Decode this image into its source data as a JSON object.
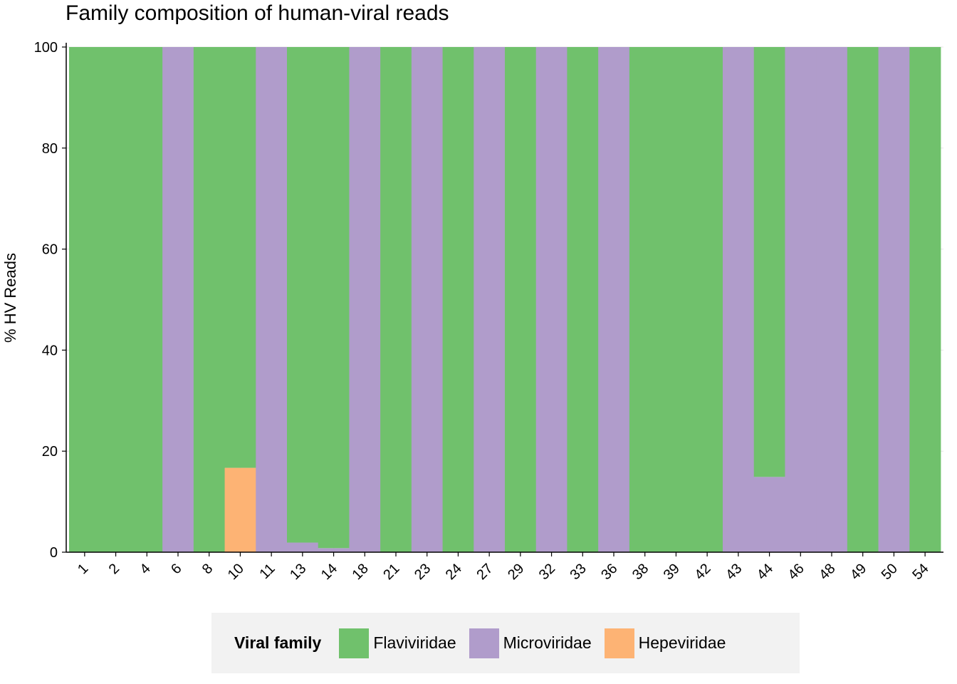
{
  "chart_data": {
    "type": "bar",
    "stacked": true,
    "title": "Family composition of human-viral reads",
    "xlabel": "",
    "ylabel": "% HV Reads",
    "ylim": [
      0,
      100
    ],
    "yticks": [
      0,
      20,
      40,
      60,
      80,
      100
    ],
    "grid": true,
    "legend_position": "bottom",
    "legend_title": "Viral family",
    "categories": [
      "1",
      "2",
      "4",
      "6",
      "8",
      "10",
      "11",
      "13",
      "14",
      "18",
      "21",
      "23",
      "24",
      "27",
      "29",
      "32",
      "33",
      "36",
      "38",
      "39",
      "42",
      "43",
      "44",
      "46",
      "48",
      "49",
      "50",
      "54"
    ],
    "series": [
      {
        "name": "Hepeviridae",
        "color": "#fdb374",
        "values": [
          0,
          0,
          0,
          0,
          0,
          16.7,
          0,
          0,
          0,
          0,
          0,
          0,
          0,
          0,
          0,
          0,
          0,
          0,
          0,
          0,
          0,
          0,
          0,
          0,
          0,
          0,
          0,
          0
        ]
      },
      {
        "name": "Microviridae",
        "color": "#b09ccb",
        "values": [
          0,
          0,
          0,
          100,
          0,
          0,
          100,
          1.9,
          0.8,
          100,
          0,
          100,
          0,
          100,
          0,
          100,
          0,
          100,
          0,
          0,
          0,
          100,
          14.9,
          100,
          100,
          0,
          100,
          0
        ]
      },
      {
        "name": "Flaviviridae",
        "color": "#70c16c",
        "values": [
          100,
          100,
          100,
          0,
          100,
          83.3,
          0,
          98.1,
          99.2,
          0,
          100,
          0,
          100,
          0,
          100,
          0,
          100,
          0,
          100,
          100,
          100,
          0,
          85.1,
          0,
          0,
          100,
          0,
          100
        ]
      }
    ],
    "legend_order": [
      "Flaviviridae",
      "Microviridae",
      "Hepeviridae"
    ]
  }
}
